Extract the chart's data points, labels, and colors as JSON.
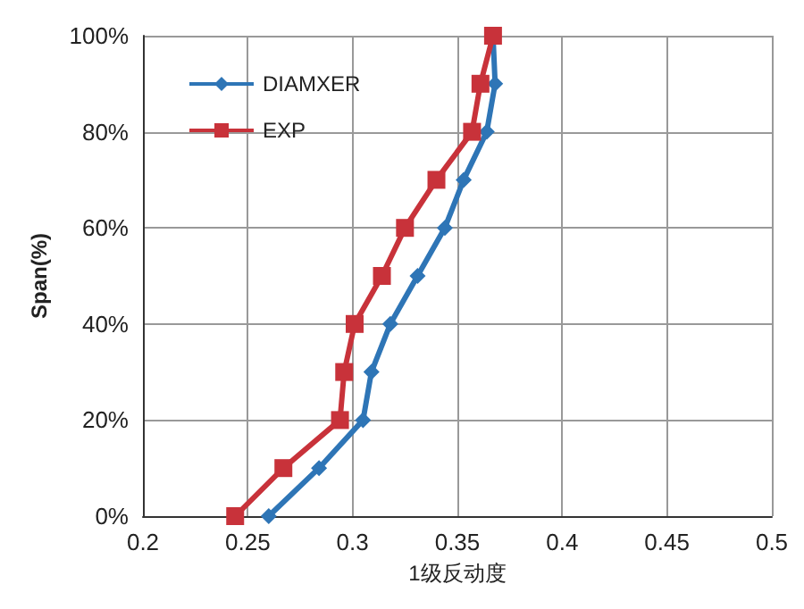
{
  "chart_data": {
    "type": "line",
    "xlabel": "1级反动度",
    "ylabel": "Span(%)",
    "series": [
      {
        "name": "DIAMXER",
        "color": "#2e75b6",
        "marker": "diamond",
        "x": [
          0.26,
          0.284,
          0.305,
          0.309,
          0.318,
          0.331,
          0.344,
          0.353,
          0.364,
          0.368,
          0.367
        ],
        "values": [
          0,
          10,
          20,
          30,
          40,
          50,
          60,
          70,
          80,
          90,
          100
        ]
      },
      {
        "name": "EXP",
        "color": "#c8323a",
        "marker": "square",
        "x": [
          0.244,
          0.267,
          0.294,
          0.296,
          0.301,
          0.314,
          0.325,
          0.34,
          0.357,
          0.361,
          0.367
        ],
        "values": [
          0,
          10,
          20,
          30,
          40,
          50,
          60,
          70,
          80,
          90,
          100
        ]
      }
    ],
    "xlim": [
      0.2,
      0.5
    ],
    "xticks": [
      0.2,
      0.25,
      0.3,
      0.35,
      0.4,
      0.45,
      0.5
    ],
    "ylim": [
      0,
      100
    ],
    "yticks": [
      {
        "value": 0,
        "label": "0%"
      },
      {
        "value": 20,
        "label": "20%"
      },
      {
        "value": 40,
        "label": "40%"
      },
      {
        "value": 60,
        "label": "60%"
      },
      {
        "value": 80,
        "label": "80%"
      },
      {
        "value": 100,
        "label": "100%"
      }
    ],
    "grid": true,
    "legend": "top left",
    "line_style": "solid"
  }
}
